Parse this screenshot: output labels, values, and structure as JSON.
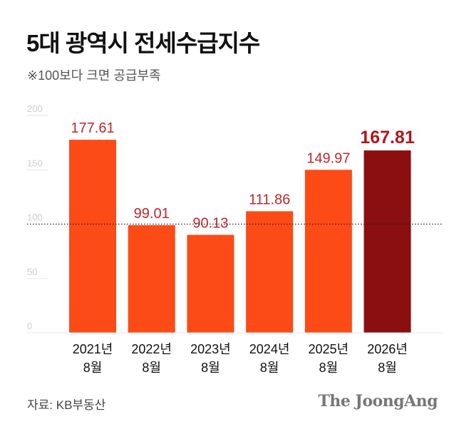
{
  "header": {
    "title": "5대 광역시 전세수급지수",
    "subtitle": "※100보다 크면 공급부족"
  },
  "footer": {
    "source": "자료: KB부동산",
    "logo": "The JoongAng"
  },
  "colors": {
    "bar": "#fc4b17",
    "bar_highlight": "#8b0e10",
    "label": "#c1272d",
    "label_highlight": "#b3151b",
    "axis_text": "#cccccc",
    "reference_line": "#222222"
  },
  "chart_data": {
    "type": "bar",
    "title": "5대 광역시 전세수급지수",
    "xlabel": "",
    "ylabel": "",
    "categories": [
      "2021년 8월",
      "2022년 8월",
      "2023년 8월",
      "2024년 8월",
      "2025년 8월",
      "2026년 8월"
    ],
    "category_lines": [
      [
        "2021년",
        "8월"
      ],
      [
        "2022년",
        "8월"
      ],
      [
        "2023년",
        "8월"
      ],
      [
        "2024년",
        "8월"
      ],
      [
        "2025년",
        "8월"
      ],
      [
        "2026년",
        "8월"
      ]
    ],
    "values": [
      177.61,
      99.01,
      90.13,
      111.86,
      149.97,
      167.81
    ],
    "value_labels": [
      "177.61",
      "99.01",
      "90.13",
      "111.86",
      "149.97",
      "167.81"
    ],
    "highlight_index": 5,
    "ylim": [
      0,
      200
    ],
    "yticks": [
      0,
      50,
      100,
      150,
      200
    ],
    "ytick_labels": [
      "0",
      "50",
      "100",
      "150",
      "200"
    ],
    "reference_value": 100,
    "grid": true,
    "legend": "none"
  }
}
